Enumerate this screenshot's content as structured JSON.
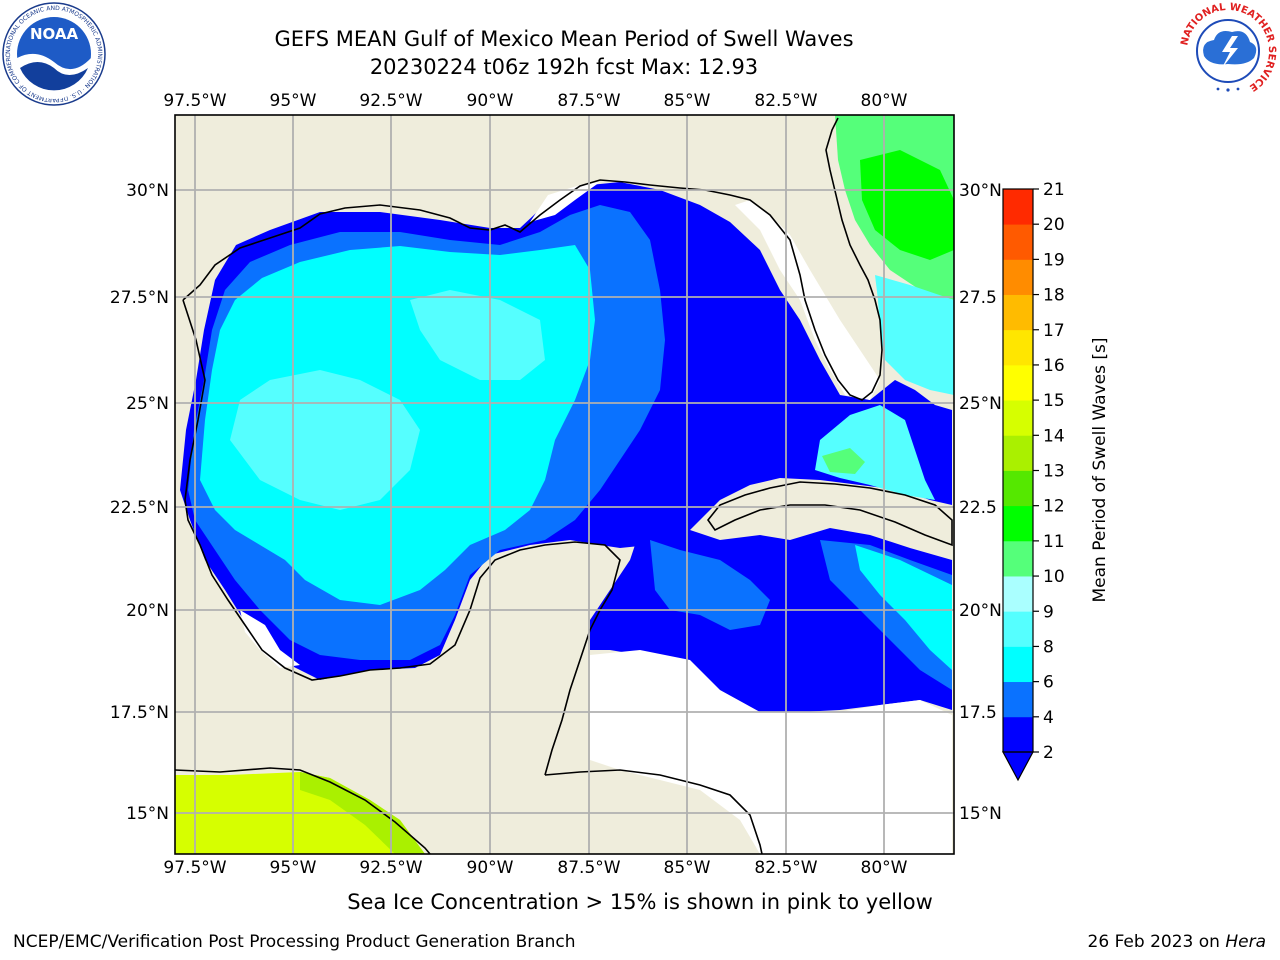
{
  "header": {
    "title_line1": "GEFS MEAN Gulf of Mexico Mean Period of Swell Waves",
    "title_line2": "20230224 t06z 192h fcst   Max: 12.93"
  },
  "logos": {
    "noaa_text": "NOAA",
    "noaa_ring": "NATIONAL OCEANIC AND ATMOSPHERIC ADMINISTRATION · U.S. DEPARTMENT OF COMMERCE",
    "nws_ring": "NATIONAL WEATHER SERVICE"
  },
  "map": {
    "lon_ticks": [
      "97.5°W",
      "95°W",
      "92.5°W",
      "90°W",
      "87.5°W",
      "85°W",
      "82.5°W",
      "80°W"
    ],
    "lat_ticks_left": [
      "30°N",
      "27.5°N",
      "25°N",
      "22.5°N",
      "20°N",
      "17.5°N",
      "15°N"
    ],
    "lat_ticks_right": [
      "30°N",
      "27.5",
      "25°N",
      "22.5",
      "20°N",
      "17.5",
      "15°N"
    ],
    "colors": {
      "land": "#efeddc",
      "no_data": "#ffffff",
      "grid": "#b0b0b0",
      "coast": "#000000"
    }
  },
  "colorbar": {
    "label": "Mean Period of Swell Waves [s]",
    "ticks": [
      "2",
      "4",
      "6",
      "8",
      "9",
      "10",
      "11",
      "12",
      "13",
      "14",
      "15",
      "16",
      "17",
      "18",
      "19",
      "20",
      "21"
    ],
    "colors": [
      "#0000ff",
      "#0a72ff",
      "#00ffff",
      "#55ffff",
      "#aaffff",
      "#55ff7a",
      "#00ff00",
      "#55e800",
      "#aaf000",
      "#d6ff00",
      "#ffff00",
      "#ffe600",
      "#ffbb00",
      "#ff8c00",
      "#ff5a00",
      "#ff2a00",
      "#ff0000"
    ],
    "extend_color": "#0000ff"
  },
  "footer": {
    "note": "Sea Ice Concentration > 15% is shown in pink to yellow",
    "credit": "NCEP/EMC/Verification Post Processing Product Generation Branch",
    "date": "26 Feb 2023 on",
    "machine": "Hera"
  }
}
